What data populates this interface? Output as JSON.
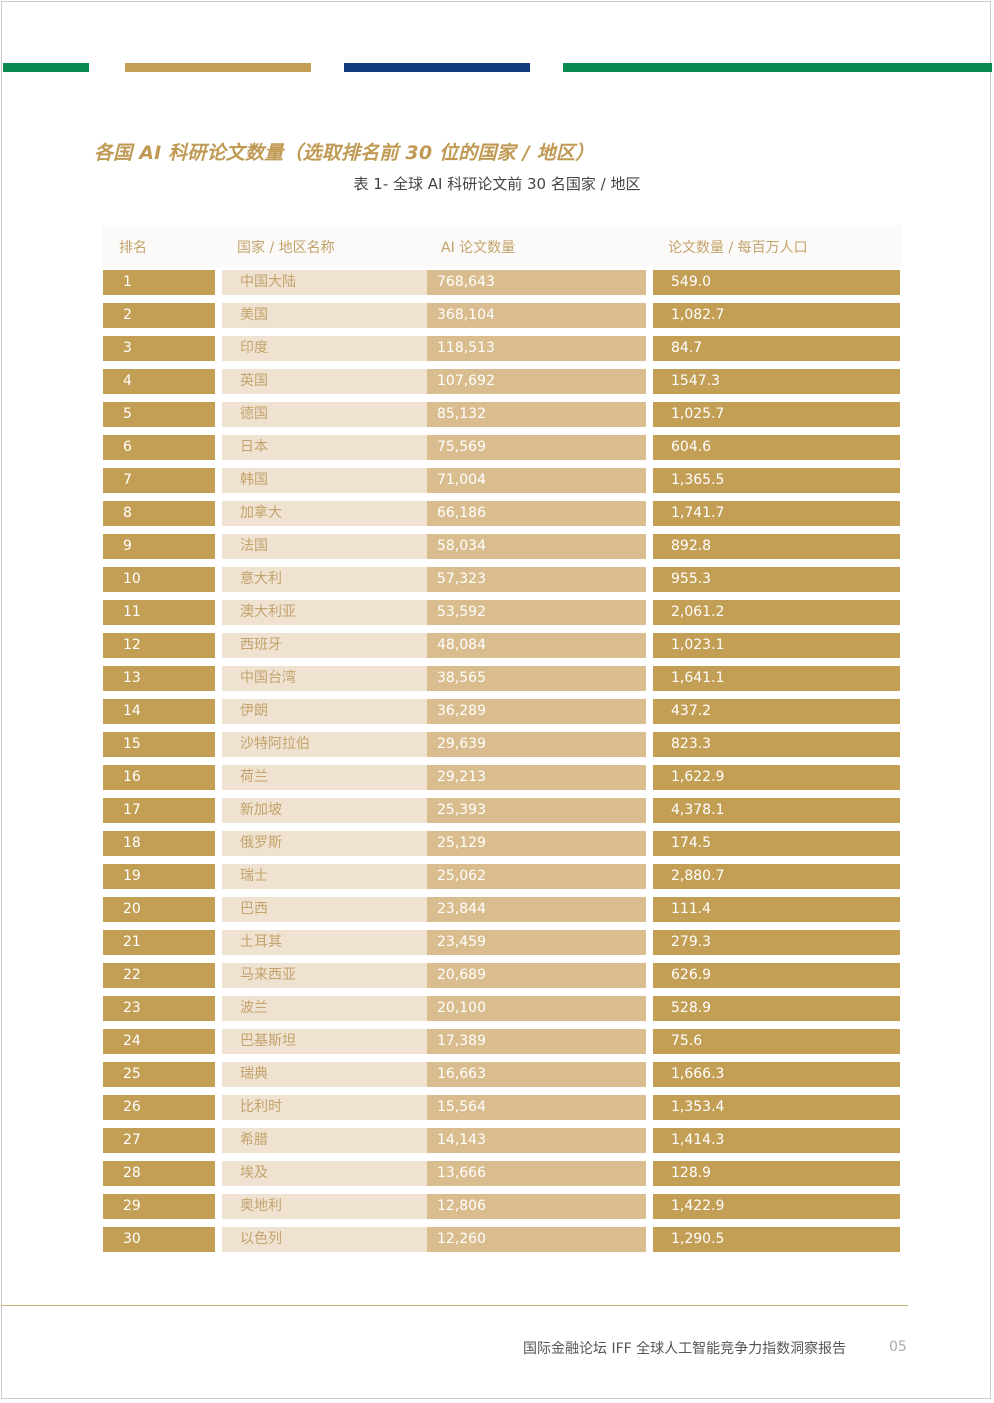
{
  "colors": {
    "green": "#0a8a4f",
    "gold": "#c39e55",
    "navy": "#123a7d",
    "rank_cell": "#c39e55",
    "name_cell": "#efe2d1",
    "name_text": "#c3a36b",
    "papers_cell": "#d9bd8e",
    "per_million_cell": "#c39e55"
  },
  "title": "各国 AI 科研论文数量（选取排名前 30 位的国家 / 地区）",
  "subtitle": "表 1- 全球 AI 科研论文前 30 名国家 / 地区",
  "table": {
    "headers": [
      "排名",
      "国家 / 地区名称",
      "AI 论文数量",
      "论文数量 / 每百万人口"
    ],
    "rows": [
      {
        "rank": "1",
        "name": "中国大陆",
        "papers": "768,643",
        "per_million": "549.0"
      },
      {
        "rank": "2",
        "name": "美国",
        "papers": "368,104",
        "per_million": "1,082.7"
      },
      {
        "rank": "3",
        "name": "印度",
        "papers": "118,513",
        "per_million": "84.7"
      },
      {
        "rank": "4",
        "name": "英国",
        "papers": "107,692",
        "per_million": "1547.3"
      },
      {
        "rank": "5",
        "name": "德国",
        "papers": "85,132",
        "per_million": "1,025.7"
      },
      {
        "rank": "6",
        "name": "日本",
        "papers": "75,569",
        "per_million": "604.6"
      },
      {
        "rank": "7",
        "name": "韩国",
        "papers": "71,004",
        "per_million": "1,365.5"
      },
      {
        "rank": "8",
        "name": "加拿大",
        "papers": "66,186",
        "per_million": "1,741.7"
      },
      {
        "rank": "9",
        "name": "法国",
        "papers": "58,034",
        "per_million": "892.8"
      },
      {
        "rank": "10",
        "name": "意大利",
        "papers": "57,323",
        "per_million": "955.3"
      },
      {
        "rank": "11",
        "name": "澳大利亚",
        "papers": "53,592",
        "per_million": "2,061.2"
      },
      {
        "rank": "12",
        "name": "西班牙",
        "papers": "48,084",
        "per_million": "1,023.1"
      },
      {
        "rank": "13",
        "name": "中国台湾",
        "papers": "38,565",
        "per_million": "1,641.1"
      },
      {
        "rank": "14",
        "name": "伊朗",
        "papers": "36,289",
        "per_million": "437.2"
      },
      {
        "rank": "15",
        "name": "沙特阿拉伯",
        "papers": "29,639",
        "per_million": "823.3"
      },
      {
        "rank": "16",
        "name": "荷兰",
        "papers": "29,213",
        "per_million": "1,622.9"
      },
      {
        "rank": "17",
        "name": "新加坡",
        "papers": "25,393",
        "per_million": "4,378.1"
      },
      {
        "rank": "18",
        "name": "俄罗斯",
        "papers": "25,129",
        "per_million": "174.5"
      },
      {
        "rank": "19",
        "name": "瑞士",
        "papers": "25,062",
        "per_million": "2,880.7"
      },
      {
        "rank": "20",
        "name": "巴西",
        "papers": "23,844",
        "per_million": "111.4"
      },
      {
        "rank": "21",
        "name": "土耳其",
        "papers": "23,459",
        "per_million": "279.3"
      },
      {
        "rank": "22",
        "name": "马来西亚",
        "papers": "20,689",
        "per_million": "626.9"
      },
      {
        "rank": "23",
        "name": "波兰",
        "papers": "20,100",
        "per_million": "528.9"
      },
      {
        "rank": "24",
        "name": "巴基斯坦",
        "papers": "17,389",
        "per_million": "75.6"
      },
      {
        "rank": "25",
        "name": "瑞典",
        "papers": "16,663",
        "per_million": "1,666.3"
      },
      {
        "rank": "26",
        "name": "比利时",
        "papers": "15,564",
        "per_million": "1,353.4"
      },
      {
        "rank": "27",
        "name": "希腊",
        "papers": "14,143",
        "per_million": "1,414.3"
      },
      {
        "rank": "28",
        "name": "埃及",
        "papers": "13,666",
        "per_million": "128.9"
      },
      {
        "rank": "29",
        "name": "奥地利",
        "papers": "12,806",
        "per_million": "1,422.9"
      },
      {
        "rank": "30",
        "name": "以色列",
        "papers": "12,260",
        "per_million": "1,290.5"
      }
    ]
  },
  "footer": {
    "report_title": "国际金融论坛 IFF 全球人工智能竞争力指数洞察报告",
    "page_number": "05"
  }
}
